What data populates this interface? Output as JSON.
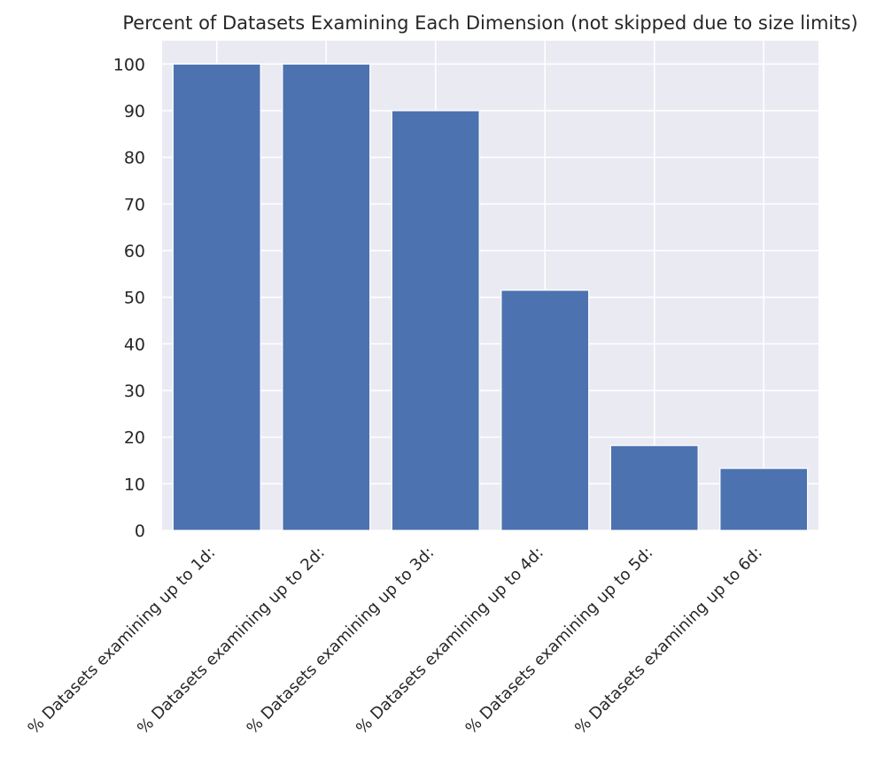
{
  "chart_data": {
    "type": "bar",
    "title": "Percent of Datasets Examining Each Dimension (not skipped due to size limits)",
    "xlabel": "",
    "ylabel": "",
    "categories": [
      "% Datasets examining up to 1d:",
      "% Datasets examining up to 2d:",
      "% Datasets examining up to 3d:",
      "% Datasets examining up to 4d:",
      "% Datasets examining up to 5d:",
      "% Datasets examining up to 6d:"
    ],
    "values": [
      100,
      100,
      90,
      51.5,
      18.2,
      13.3
    ],
    "ylim": [
      0,
      105
    ],
    "yticks": [
      0,
      10,
      20,
      30,
      40,
      50,
      60,
      70,
      80,
      90,
      100
    ],
    "grid": true,
    "legend": "none",
    "colors": {
      "bar": "#4c72b0",
      "plot_background": "#eaeaf2",
      "grid": "#ffffff",
      "text": "#262626"
    }
  }
}
